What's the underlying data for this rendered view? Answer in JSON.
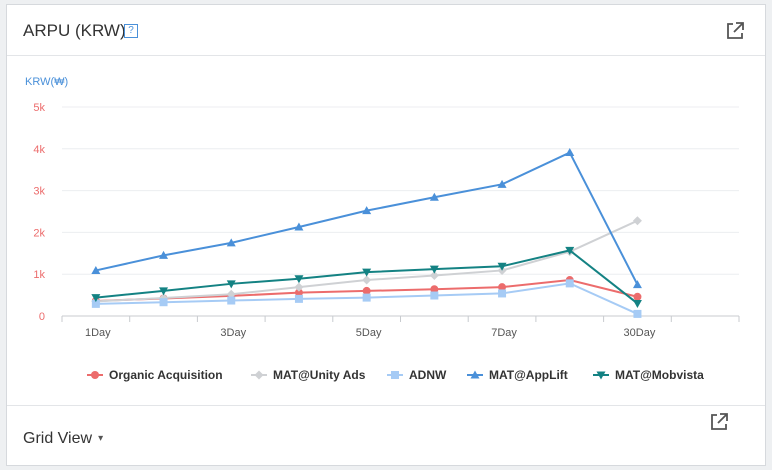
{
  "header": {
    "title": "ARPU (KRW)",
    "help_label": "?"
  },
  "footer": {
    "grid_view_label": "Grid View",
    "dropdown_caret": "▾"
  },
  "icons": {
    "external_link": "external-link-icon",
    "help": "help-icon"
  },
  "chart_data": {
    "type": "line",
    "ylabel": "KRW(₩)",
    "ylim": [
      0,
      5000
    ],
    "yticks": [
      "0",
      "1k",
      "2k",
      "3k",
      "4k",
      "5k"
    ],
    "xticks": [
      {
        "label": "1Day",
        "pos": 1
      },
      {
        "label": "3Day",
        "pos": 3
      },
      {
        "label": "5Day",
        "pos": 5
      },
      {
        "label": "7Day",
        "pos": 7
      },
      {
        "label": "30Day",
        "pos": 9
      }
    ],
    "x": [
      1,
      2,
      3,
      4,
      5,
      6,
      7,
      8,
      9
    ],
    "grid": true,
    "legend_position": "bottom",
    "series": [
      {
        "name": "Organic Acquisition",
        "color": "#ec6c6c",
        "marker": "circle",
        "values": [
          360,
          420,
          480,
          560,
          600,
          640,
          690,
          860,
          460
        ]
      },
      {
        "name": "MAT@Unity Ads",
        "color": "#cfd1d4",
        "marker": "diamond",
        "values": [
          350,
          430,
          520,
          690,
          860,
          970,
          1090,
          1540,
          2280
        ]
      },
      {
        "name": "ADNW",
        "color": "#a6cbf5",
        "marker": "square",
        "values": [
          290,
          330,
          370,
          410,
          440,
          490,
          540,
          780,
          50
        ]
      },
      {
        "name": "MAT@AppLift",
        "color": "#4a90d9",
        "marker": "triangle-up",
        "values": [
          1090,
          1450,
          1750,
          2130,
          2520,
          2840,
          3150,
          3910,
          750
        ]
      },
      {
        "name": "MAT@Mobvista",
        "color": "#148283",
        "marker": "triangle-down",
        "values": [
          440,
          600,
          770,
          890,
          1050,
          1120,
          1190,
          1570,
          300
        ]
      }
    ]
  }
}
